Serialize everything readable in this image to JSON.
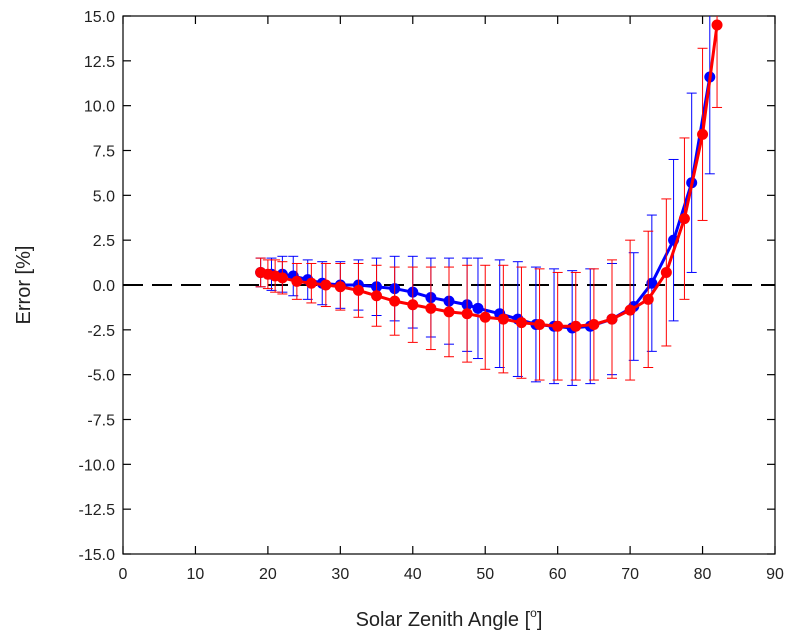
{
  "chart_data": {
    "type": "line",
    "title": "",
    "xlabel": "Solar Zenith Angle [",
    "xlabel_sup": "o",
    "xlabel_end": "]",
    "ylabel": "Error [%]",
    "xlim": [
      0,
      90
    ],
    "ylim": [
      -15,
      15
    ],
    "x_ticks": [
      0,
      10,
      20,
      30,
      40,
      50,
      60,
      70,
      80,
      90
    ],
    "x_tick_labels": [
      "0",
      "10",
      "20",
      "30",
      "40",
      "50",
      "60",
      "70",
      "80",
      "90"
    ],
    "y_ticks": [
      -15,
      -12.5,
      -10,
      -7.5,
      -5,
      -2.5,
      0,
      2.5,
      5,
      7.5,
      10,
      12.5,
      15
    ],
    "y_tick_labels": [
      "-15.0",
      "-12.5",
      "-10.0",
      "-7.5",
      "-5.0",
      "-2.5",
      "0.0",
      "2.5",
      "5.0",
      "7.5",
      "10.0",
      "12.5",
      "15.0"
    ],
    "grid": false,
    "reference_line": {
      "y": 0,
      "style": "dashed",
      "color": "#000000"
    },
    "series": [
      {
        "color": "#0000ff",
        "x": [
          19.0,
          20.5,
          22.0,
          23.5,
          25.5,
          27.5,
          30.0,
          32.5,
          35.0,
          37.5,
          40.0,
          42.5,
          45.0,
          47.5,
          49.0,
          52.0,
          54.5,
          57.0,
          59.5,
          62.0,
          64.5,
          67.5,
          70.5,
          73.0,
          76.0,
          78.5,
          81.0
        ],
        "y": [
          0.7,
          0.6,
          0.6,
          0.5,
          0.3,
          0.1,
          0.0,
          0.0,
          -0.1,
          -0.2,
          -0.4,
          -0.7,
          -0.9,
          -1.1,
          -1.3,
          -1.6,
          -1.9,
          -2.2,
          -2.3,
          -2.4,
          -2.3,
          -1.9,
          -1.2,
          0.1,
          2.5,
          5.7,
          11.6
        ],
        "error": [
          0.8,
          0.9,
          1.0,
          1.1,
          1.1,
          1.2,
          1.3,
          1.4,
          1.6,
          1.8,
          2.0,
          2.2,
          2.4,
          2.6,
          2.8,
          3.0,
          3.2,
          3.2,
          3.2,
          3.2,
          3.2,
          3.1,
          3.0,
          3.8,
          4.5,
          5.0,
          5.4
        ]
      },
      {
        "color": "#ff0000",
        "x": [
          19.0,
          20.0,
          21.0,
          22.0,
          24.0,
          26.0,
          28.0,
          30.0,
          32.5,
          35.0,
          37.5,
          40.0,
          42.5,
          45.0,
          47.5,
          50.0,
          52.5,
          55.0,
          57.5,
          60.0,
          62.5,
          65.0,
          67.5,
          70.0,
          72.5,
          75.0,
          77.5,
          80.0,
          82.0
        ],
        "y": [
          0.7,
          0.6,
          0.5,
          0.4,
          0.2,
          0.1,
          0.0,
          -0.1,
          -0.3,
          -0.6,
          -0.9,
          -1.1,
          -1.3,
          -1.5,
          -1.6,
          -1.8,
          -1.9,
          -2.1,
          -2.2,
          -2.3,
          -2.3,
          -2.2,
          -1.9,
          -1.4,
          -0.8,
          0.7,
          3.7,
          8.4,
          14.5
        ],
        "error": [
          0.8,
          0.8,
          0.9,
          0.9,
          1.0,
          1.1,
          1.2,
          1.3,
          1.5,
          1.7,
          1.9,
          2.1,
          2.3,
          2.5,
          2.7,
          2.9,
          3.0,
          3.1,
          3.1,
          3.0,
          3.0,
          3.1,
          3.3,
          3.9,
          3.8,
          4.1,
          4.5,
          4.8,
          4.6
        ]
      }
    ]
  }
}
